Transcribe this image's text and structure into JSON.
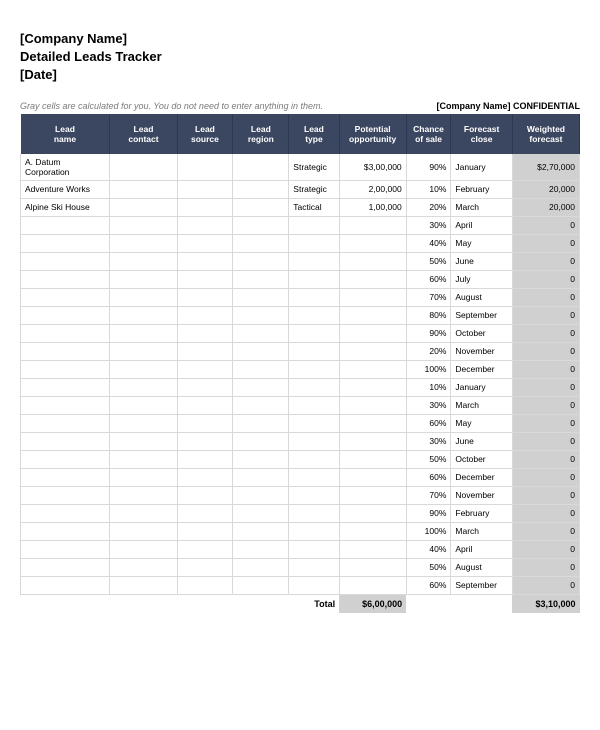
{
  "header": {
    "company": "[Company Name]",
    "title": "Detailed Leads Tracker",
    "date": "[Date]"
  },
  "meta": {
    "note": "Gray cells are calculated for you. You do not need to enter anything in them.",
    "company_conf": "[Company Name]",
    "confidential": "CONFIDENTIAL"
  },
  "table": {
    "columns": [
      {
        "label1": "Lead",
        "label2": "name",
        "key": "name",
        "class": "col-name"
      },
      {
        "label1": "Lead",
        "label2": "contact",
        "key": "contact",
        "class": "col-contact"
      },
      {
        "label1": "Lead",
        "label2": "source",
        "key": "source",
        "class": "col-source"
      },
      {
        "label1": "Lead",
        "label2": "region",
        "key": "region",
        "class": "col-region"
      },
      {
        "label1": "Lead",
        "label2": "type",
        "key": "type",
        "class": "col-type"
      },
      {
        "label1": "Potential",
        "label2": "opportunity",
        "key": "opp",
        "class": "col-opp"
      },
      {
        "label1": "Chance",
        "label2": "of sale",
        "key": "chance",
        "class": "col-chance"
      },
      {
        "label1": "Forecast",
        "label2": "close",
        "key": "close",
        "class": "col-close"
      },
      {
        "label1": "Weighted",
        "label2": "forecast",
        "key": "weighted",
        "class": "col-weighted"
      }
    ],
    "rows": [
      {
        "name": "A. Datum Corporation",
        "contact": "",
        "source": "",
        "region": "",
        "type": "Strategic",
        "opp": "$3,00,000",
        "chance": "90%",
        "close": "January",
        "weighted": "$2,70,000"
      },
      {
        "name": "Adventure Works",
        "contact": "",
        "source": "",
        "region": "",
        "type": "Strategic",
        "opp": "2,00,000",
        "chance": "10%",
        "close": "February",
        "weighted": "20,000"
      },
      {
        "name": "Alpine Ski House",
        "contact": "",
        "source": "",
        "region": "",
        "type": "Tactical",
        "opp": "1,00,000",
        "chance": "20%",
        "close": "March",
        "weighted": "20,000"
      },
      {
        "name": "",
        "contact": "",
        "source": "",
        "region": "",
        "type": "",
        "opp": "",
        "chance": "30%",
        "close": "April",
        "weighted": "0"
      },
      {
        "name": "",
        "contact": "",
        "source": "",
        "region": "",
        "type": "",
        "opp": "",
        "chance": "40%",
        "close": "May",
        "weighted": "0"
      },
      {
        "name": "",
        "contact": "",
        "source": "",
        "region": "",
        "type": "",
        "opp": "",
        "chance": "50%",
        "close": "June",
        "weighted": "0"
      },
      {
        "name": "",
        "contact": "",
        "source": "",
        "region": "",
        "type": "",
        "opp": "",
        "chance": "60%",
        "close": "July",
        "weighted": "0"
      },
      {
        "name": "",
        "contact": "",
        "source": "",
        "region": "",
        "type": "",
        "opp": "",
        "chance": "70%",
        "close": "August",
        "weighted": "0"
      },
      {
        "name": "",
        "contact": "",
        "source": "",
        "region": "",
        "type": "",
        "opp": "",
        "chance": "80%",
        "close": "September",
        "weighted": "0"
      },
      {
        "name": "",
        "contact": "",
        "source": "",
        "region": "",
        "type": "",
        "opp": "",
        "chance": "90%",
        "close": "October",
        "weighted": "0"
      },
      {
        "name": "",
        "contact": "",
        "source": "",
        "region": "",
        "type": "",
        "opp": "",
        "chance": "20%",
        "close": "November",
        "weighted": "0"
      },
      {
        "name": "",
        "contact": "",
        "source": "",
        "region": "",
        "type": "",
        "opp": "",
        "chance": "100%",
        "close": "December",
        "weighted": "0"
      },
      {
        "name": "",
        "contact": "",
        "source": "",
        "region": "",
        "type": "",
        "opp": "",
        "chance": "10%",
        "close": "January",
        "weighted": "0"
      },
      {
        "name": "",
        "contact": "",
        "source": "",
        "region": "",
        "type": "",
        "opp": "",
        "chance": "30%",
        "close": "March",
        "weighted": "0"
      },
      {
        "name": "",
        "contact": "",
        "source": "",
        "region": "",
        "type": "",
        "opp": "",
        "chance": "60%",
        "close": "May",
        "weighted": "0"
      },
      {
        "name": "",
        "contact": "",
        "source": "",
        "region": "",
        "type": "",
        "opp": "",
        "chance": "30%",
        "close": "June",
        "weighted": "0"
      },
      {
        "name": "",
        "contact": "",
        "source": "",
        "region": "",
        "type": "",
        "opp": "",
        "chance": "50%",
        "close": "October",
        "weighted": "0"
      },
      {
        "name": "",
        "contact": "",
        "source": "",
        "region": "",
        "type": "",
        "opp": "",
        "chance": "60%",
        "close": "December",
        "weighted": "0"
      },
      {
        "name": "",
        "contact": "",
        "source": "",
        "region": "",
        "type": "",
        "opp": "",
        "chance": "70%",
        "close": "November",
        "weighted": "0"
      },
      {
        "name": "",
        "contact": "",
        "source": "",
        "region": "",
        "type": "",
        "opp": "",
        "chance": "90%",
        "close": "February",
        "weighted": "0"
      },
      {
        "name": "",
        "contact": "",
        "source": "",
        "region": "",
        "type": "",
        "opp": "",
        "chance": "100%",
        "close": "March",
        "weighted": "0"
      },
      {
        "name": "",
        "contact": "",
        "source": "",
        "region": "",
        "type": "",
        "opp": "",
        "chance": "40%",
        "close": "April",
        "weighted": "0"
      },
      {
        "name": "",
        "contact": "",
        "source": "",
        "region": "",
        "type": "",
        "opp": "",
        "chance": "50%",
        "close": "August",
        "weighted": "0"
      },
      {
        "name": "",
        "contact": "",
        "source": "",
        "region": "",
        "type": "",
        "opp": "",
        "chance": "60%",
        "close": "September",
        "weighted": "0"
      }
    ],
    "footer": {
      "total_label": "Total",
      "total_opp": "$6,00,000",
      "total_weighted": "$3,10,000"
    }
  },
  "styling": {
    "header_bg": "#3b4660",
    "header_fg": "#ffffff",
    "calc_bg": "#d0d0d0",
    "grid_color": "#d9d9d9",
    "note_color": "#7a7a7a",
    "font_family": "Arial",
    "header_fontsize_pt": 13,
    "body_fontsize_pt": 8.5
  }
}
